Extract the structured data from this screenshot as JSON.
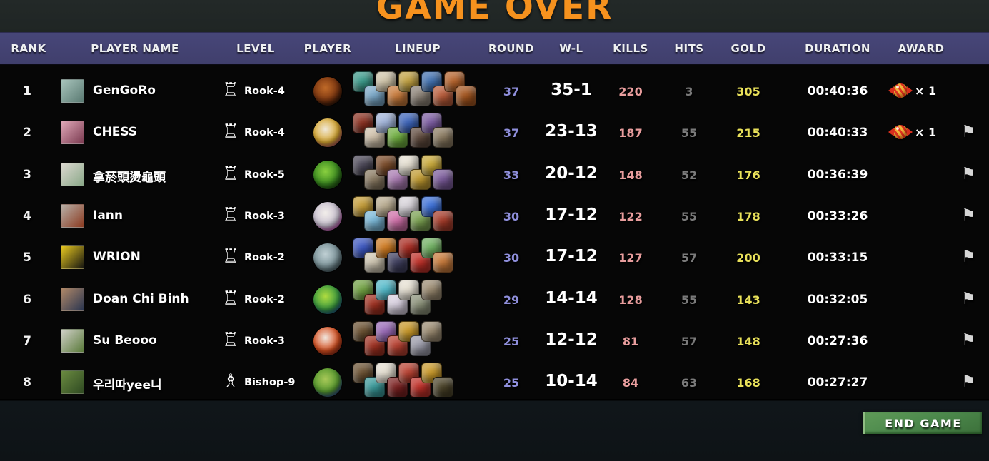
{
  "title": "GAME OVER",
  "columns": [
    "RANK",
    "PLAYER NAME",
    "LEVEL",
    "PLAYER",
    "LINEUP",
    "ROUND",
    "W-L",
    "KILLS",
    "HITS",
    "GOLD",
    "DURATION",
    "AWARD"
  ],
  "pieces": {
    "rook": "♖",
    "bishop": "♗"
  },
  "icons": {
    "flag": "⚑",
    "award": "candy-icon"
  },
  "end_game_label": "END GAME",
  "colors": {
    "title": "#f6921e",
    "header": "#434270",
    "round": "#8f8fdc",
    "kills": "#e89d9d",
    "hits": "#7a7a7a",
    "gold": "#e9e15a",
    "flag": "#d6d6d6",
    "button": "#4d8a4d"
  },
  "rows": [
    {
      "rank": "1",
      "name": "GenGoRo",
      "level_piece": "rook",
      "level": "Rook-4",
      "round": "37",
      "wl": "35-1",
      "kills": "220",
      "hits": "3",
      "gold": "305",
      "duration": "00:40:36",
      "award": "× 1",
      "flag": false,
      "avatar": [
        "#a8c4bc",
        "#5a7a72"
      ],
      "courier": [
        "#c06a28",
        "#7a3510",
        "#0a0503"
      ],
      "lineup": [
        "#3a9a8a",
        "#7aa8c8",
        "#cfc4a8",
        "#c87a3a",
        "#c0a040",
        "#8a8075",
        "#3f6fae",
        "#b85a38",
        "#b5622a",
        "#a5551e"
      ]
    },
    {
      "rank": "2",
      "name": "CHESS",
      "level_piece": "rook",
      "level": "Rook-4",
      "round": "37",
      "wl": "23-13",
      "kills": "187",
      "hits": "55",
      "gold": "215",
      "duration": "00:40:33",
      "award": "× 1",
      "flag": true,
      "avatar": [
        "#e0a8b8",
        "#7a3a50"
      ],
      "courier": [
        "#f0e8d8",
        "#d8a830",
        "#c03a88"
      ],
      "lineup": [
        "#8a2f1f",
        "#cfc0aa",
        "#9fb2d8",
        "#6fae3f",
        "#3a62b8",
        "#5f4a3d",
        "#7a5aa0",
        "#8a7a60"
      ]
    },
    {
      "rank": "3",
      "name": "拿菸頭燙龜頭",
      "level_piece": "rook",
      "level": "Rook-5",
      "round": "33",
      "wl": "20-12",
      "kills": "148",
      "hits": "52",
      "gold": "176",
      "duration": "00:36:39",
      "award": null,
      "flag": true,
      "avatar": [
        "#dcd8d0",
        "#8aa888"
      ],
      "courier": [
        "#8ad040",
        "#3a8a20",
        "#123a0a"
      ],
      "lineup": [
        "#4a4656",
        "#8a7a62",
        "#7a4a28",
        "#a87ab0",
        "#e6e0d2",
        "#c09a30",
        "#c8a838",
        "#7a5a9a"
      ]
    },
    {
      "rank": "4",
      "name": "Iann",
      "level_piece": "rook",
      "level": "Rook-3",
      "round": "30",
      "wl": "17-12",
      "kills": "122",
      "hits": "55",
      "gold": "178",
      "duration": "00:33:26",
      "award": null,
      "flag": true,
      "avatar": [
        "#b8b0a8",
        "#8a3a20"
      ],
      "courier": [
        "#f2eeea",
        "#c8c0d0",
        "#e020c0"
      ],
      "lineup": [
        "#c39b35",
        "#7ab8d8",
        "#b8ab8f",
        "#cf6fa8",
        "#d8d4da",
        "#7aa050",
        "#3a6fd8",
        "#a53a28"
      ]
    },
    {
      "rank": "5",
      "name": "WRION",
      "level_piece": "rook",
      "level": "Rook-2",
      "round": "30",
      "wl": "17-12",
      "kills": "127",
      "hits": "57",
      "gold": "200",
      "duration": "00:33:15",
      "award": null,
      "flag": true,
      "avatar": [
        "#e8c820",
        "#151510"
      ],
      "courier": [
        "#c0d0d4",
        "#7a9298",
        "#3a5058"
      ],
      "lineup": [
        "#3a55c0",
        "#cfc6b2",
        "#cf7a20",
        "#3f3f5f",
        "#a82a20",
        "#c03028",
        "#6fb060",
        "#c87a3a"
      ]
    },
    {
      "rank": "6",
      "name": "Doan Chi Binh",
      "level_piece": "rook",
      "level": "Rook-2",
      "round": "29",
      "wl": "14-14",
      "kills": "128",
      "hits": "55",
      "gold": "143",
      "duration": "00:32:05",
      "award": null,
      "flag": true,
      "avatar": [
        "#b08868",
        "#2a3550"
      ],
      "courier": [
        "#b0dc40",
        "#3a9a40",
        "#1848c8"
      ],
      "lineup": [
        "#6fa040",
        "#a03020",
        "#50b8c8",
        "#d8d0e0",
        "#e6e0d2",
        "#8a9078",
        "#9a8a70"
      ]
    },
    {
      "rank": "7",
      "name": "Su Beooo",
      "level_piece": "rook",
      "level": "Rook-3",
      "round": "25",
      "wl": "12-12",
      "kills": "81",
      "hits": "57",
      "gold": "148",
      "duration": "00:27:36",
      "award": null,
      "flag": true,
      "avatar": [
        "#d0d0c8",
        "#5a7a3a"
      ],
      "courier": [
        "#f0e8e0",
        "#d85020",
        "#8a2015"
      ],
      "lineup": [
        "#6a5030",
        "#a03020",
        "#9a6ab8",
        "#b84030",
        "#c89828",
        "#9a9aa8",
        "#9a8a70"
      ]
    },
    {
      "rank": "8",
      "name": "우리따yee니",
      "level_piece": "bishop",
      "level": "Bishop-9",
      "round": "25",
      "wl": "10-14",
      "kills": "84",
      "hits": "63",
      "gold": "168",
      "duration": "00:27:27",
      "award": null,
      "flag": true,
      "avatar": [
        "#6a8a40",
        "#2f4a22"
      ],
      "courier": [
        "#a8c858",
        "#55982f",
        "#2838d8"
      ],
      "lineup": [
        "#6a5030",
        "#3a9a9a",
        "#e6e0d2",
        "#7a2020",
        "#b84030",
        "#c03028",
        "#c89828",
        "#4a4228"
      ]
    }
  ]
}
